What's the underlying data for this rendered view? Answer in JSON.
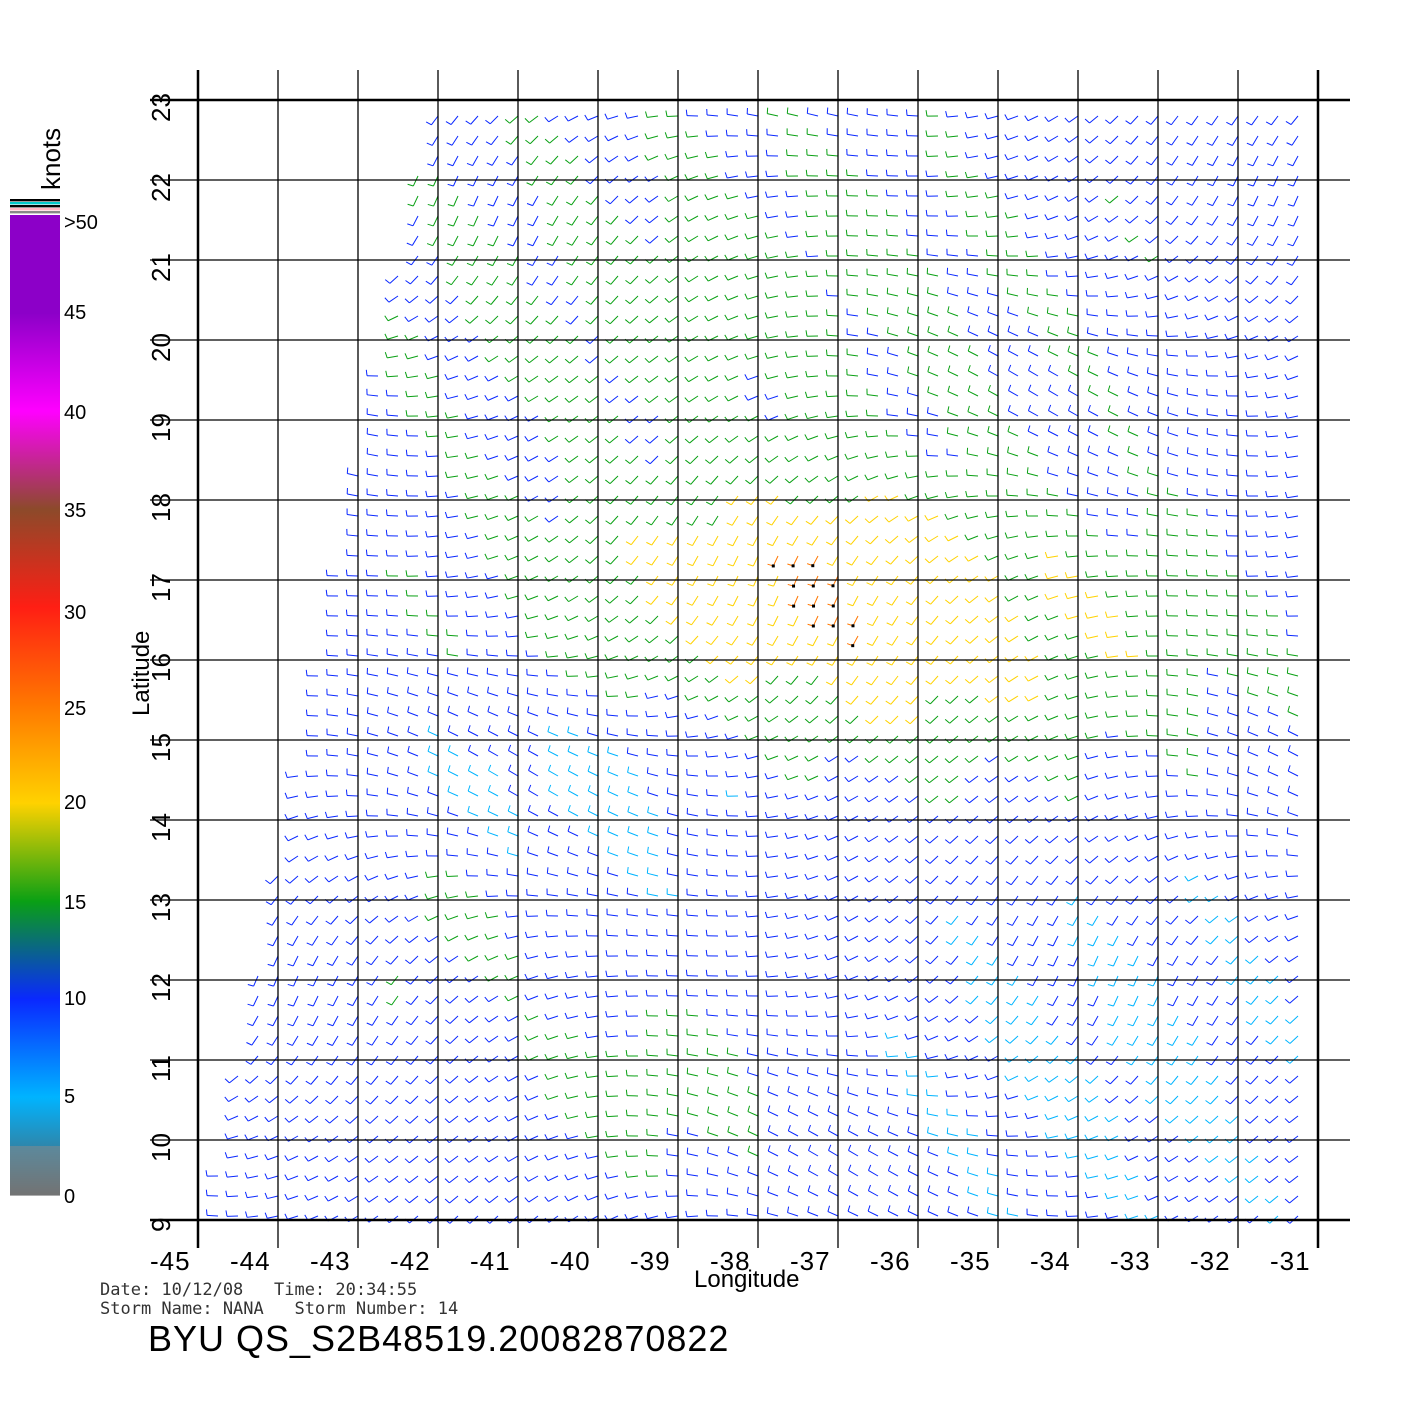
{
  "colorbar": {
    "unit": "knots",
    "labels": [
      ">50",
      "45",
      "40",
      "35",
      "30",
      "25",
      "20",
      "15",
      "10",
      "5",
      "0"
    ]
  },
  "axes": {
    "xlabel": "Longitude",
    "ylabel": "Latitude",
    "lon_ticks": [
      "-45",
      "-44",
      "-43",
      "-42",
      "-41",
      "-40",
      "-39",
      "-38",
      "-37",
      "-36",
      "-35",
      "-34",
      "-33",
      "-32",
      "-31"
    ],
    "lat_ticks": [
      "9",
      "10",
      "11",
      "12",
      "13",
      "14",
      "15",
      "16",
      "17",
      "18",
      "19",
      "20",
      "21",
      "22",
      "23"
    ]
  },
  "meta": {
    "line1": "Date: 10/12/08   Time: 20:34:55",
    "line2": "Storm Name: NANA   Storm Number: 14",
    "file": "BYU QS_S2B48519.20082870822"
  },
  "chart_data": {
    "type": "wind-barb-map",
    "lon_range": [
      -45,
      -31
    ],
    "lat_range": [
      9,
      23
    ],
    "speed_unit": "knots",
    "color_scale": [
      {
        "from": 0,
        "to": 5,
        "color": "#5a5a5a"
      },
      {
        "from": 5,
        "to": 10,
        "color": "#00b4ff"
      },
      {
        "from": 10,
        "to": 15,
        "color": "#0a28ff"
      },
      {
        "from": 15,
        "to": 20,
        "color": "#0aa014"
      },
      {
        "from": 20,
        "to": 25,
        "color": "#ffd200"
      },
      {
        "from": 25,
        "to": 30,
        "color": "#ff7800"
      },
      {
        "from": 30,
        "to": 35,
        "color": "#ff1e14"
      },
      {
        "from": 35,
        "to": 40,
        "color": "#8c4a2a"
      },
      {
        "from": 40,
        "to": 45,
        "color": "#ff00ff"
      },
      {
        "from": 45,
        "to": 50,
        "color": "#8c00c8"
      }
    ]
  }
}
